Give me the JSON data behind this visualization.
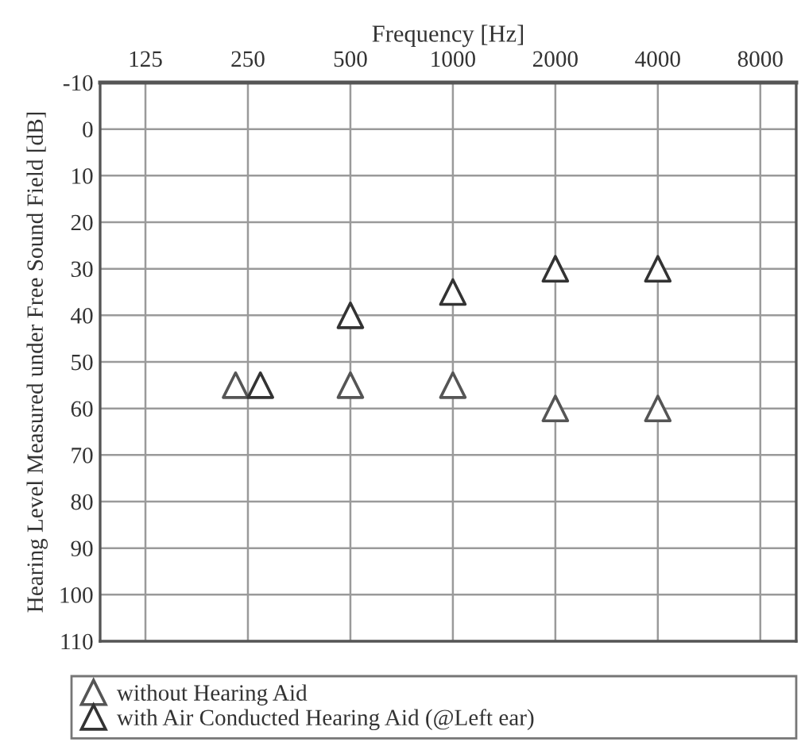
{
  "chart_data": {
    "type": "scatter",
    "xlabel": "Frequency [Hz]",
    "ylabel": "Hearing Level Measured under Free Sound Field [dB]",
    "log": "x",
    "xlim": [
      92,
      10200
    ],
    "xticks": [
      125,
      250,
      500,
      1000,
      2000,
      4000,
      8000
    ],
    "ylim": [
      110,
      -10
    ],
    "yticks": [
      -10,
      0,
      10,
      20,
      30,
      40,
      50,
      60,
      70,
      80,
      90,
      100,
      110
    ],
    "grid": true,
    "legend": "bottom",
    "marker": "triangle",
    "series": [
      {
        "name": "without Hearing Aid",
        "color": "#555555",
        "x": [
          230,
          500,
          1000,
          2000,
          4000
        ],
        "values": [
          55,
          55,
          55,
          60,
          60
        ]
      },
      {
        "name": "with Air Conducted Hearing Aid (@Left ear)",
        "color": "#333333",
        "x": [
          272,
          500,
          1000,
          2000,
          4000
        ],
        "values": [
          55,
          40,
          35,
          30,
          30
        ]
      }
    ]
  }
}
